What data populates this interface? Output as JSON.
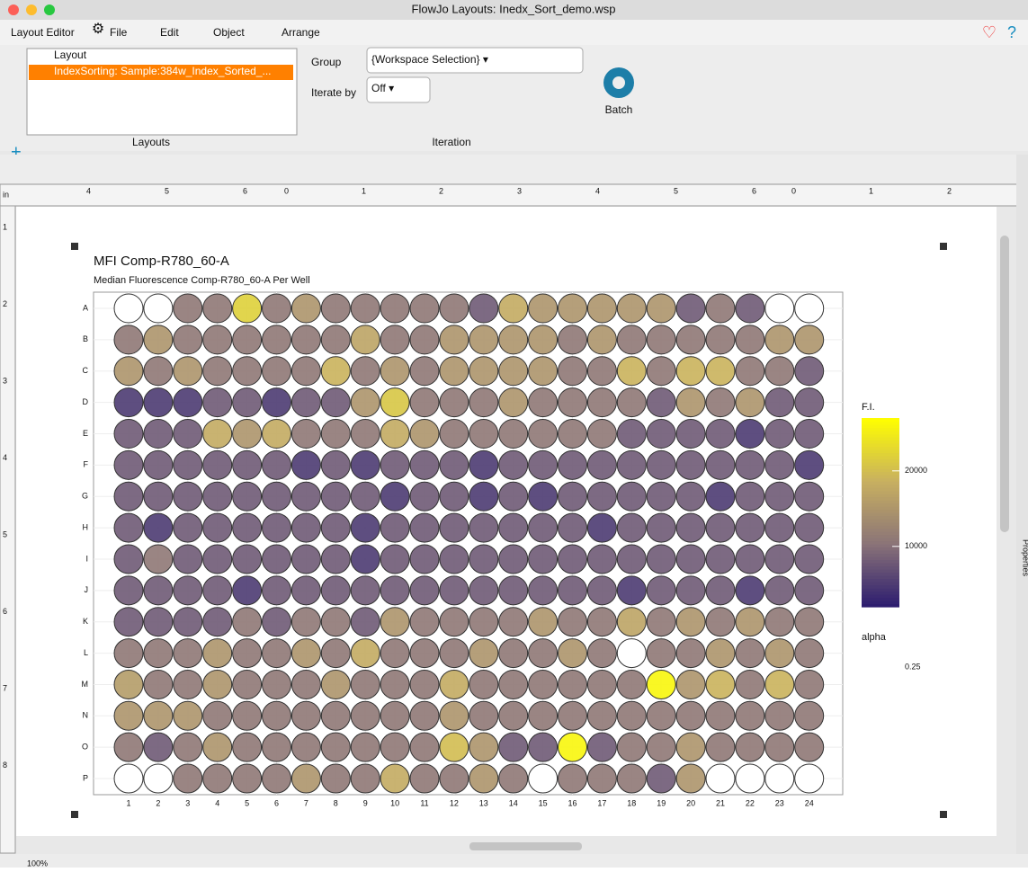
{
  "window": {
    "title": "FlowJo Layouts: Inedx_Sort_demo.wsp"
  },
  "menu": [
    "Layout Editor",
    "File",
    "Edit",
    "Object",
    "Arrange"
  ],
  "layouts": {
    "items": [
      "Layout",
      "IndexSorting: Sample:384w_Index_Sorted_..."
    ],
    "label": "Layouts"
  },
  "iteration": {
    "group_label": "Group",
    "group_value": "{Workspace Selection} ▾",
    "iterate_label": "Iterate by",
    "iterate_value": "Off ▾",
    "label": "Iteration",
    "batch": "Batch"
  },
  "ruler": {
    "unit": "in",
    "top": [
      "4",
      "5",
      "6",
      "0",
      "1",
      "2",
      "3",
      "4",
      "5",
      "6",
      "0",
      "1",
      "2"
    ],
    "left": [
      "1",
      "2",
      "3",
      "4",
      "5",
      "6",
      "7",
      "8"
    ]
  },
  "zoom": "100%",
  "side_panel": "Properties",
  "chart_data": {
    "type": "heatmap",
    "title": "MFI Comp-R780_60-A",
    "subtitle": "Median Fluorescence Comp-R780_60-A Per Well",
    "categories": [
      "1",
      "2",
      "3",
      "4",
      "5",
      "6",
      "7",
      "8",
      "9",
      "10",
      "11",
      "12",
      "13",
      "14",
      "15",
      "16",
      "17",
      "18",
      "19",
      "20",
      "21",
      "22",
      "23",
      "24"
    ],
    "rows": [
      "A",
      "B",
      "C",
      "D",
      "E",
      "F",
      "G",
      "H",
      "I",
      "J",
      "K",
      "L",
      "M",
      "N",
      "O",
      "P"
    ],
    "values": [
      [
        null,
        null,
        11000,
        11000,
        22000,
        11000,
        15000,
        11000,
        11000,
        11000,
        11000,
        11000,
        8000,
        18000,
        15000,
        15000,
        15000,
        15000,
        15000,
        8000,
        11000,
        8000,
        null,
        null
      ],
      [
        11000,
        15000,
        11000,
        11000,
        11000,
        11000,
        11000,
        11000,
        17000,
        11000,
        11000,
        15000,
        15000,
        15000,
        15000,
        11000,
        15000,
        11000,
        11000,
        11000,
        11000,
        11000,
        15000,
        15000
      ],
      [
        15000,
        11000,
        15000,
        11000,
        11000,
        11000,
        11000,
        19000,
        11000,
        15000,
        11000,
        15000,
        15000,
        15000,
        15000,
        11000,
        11000,
        19000,
        11000,
        19000,
        19000,
        11000,
        11000,
        8000
      ],
      [
        5000,
        5000,
        5000,
        8000,
        8000,
        5000,
        8000,
        8000,
        15000,
        21000,
        11000,
        11000,
        11000,
        15000,
        11000,
        11000,
        11000,
        11000,
        8000,
        15000,
        11000,
        15000,
        8000,
        8000
      ],
      [
        8000,
        8000,
        8000,
        18000,
        15000,
        18000,
        11000,
        11000,
        11000,
        18000,
        15000,
        11000,
        11000,
        11000,
        11000,
        11000,
        11000,
        8000,
        8000,
        8000,
        8000,
        5000,
        8000,
        8000
      ],
      [
        8000,
        8000,
        8000,
        8000,
        8000,
        8000,
        5000,
        8000,
        5000,
        8000,
        8000,
        8000,
        5000,
        8000,
        8000,
        8000,
        8000,
        8000,
        8000,
        8000,
        8000,
        8000,
        8000,
        5000
      ],
      [
        8000,
        8000,
        8000,
        8000,
        8000,
        8000,
        8000,
        8000,
        8000,
        5000,
        8000,
        8000,
        5000,
        8000,
        5000,
        8000,
        8000,
        8000,
        8000,
        8000,
        5000,
        8000,
        8000,
        8000
      ],
      [
        8000,
        5000,
        8000,
        8000,
        8000,
        8000,
        8000,
        8000,
        5000,
        8000,
        8000,
        8000,
        8000,
        8000,
        8000,
        8000,
        5000,
        8000,
        8000,
        8000,
        8000,
        8000,
        8000,
        8000
      ],
      [
        8000,
        11000,
        8000,
        8000,
        8000,
        8000,
        8000,
        8000,
        5000,
        8000,
        8000,
        8000,
        8000,
        8000,
        8000,
        8000,
        8000,
        8000,
        8000,
        8000,
        8000,
        8000,
        8000,
        8000
      ],
      [
        8000,
        8000,
        8000,
        8000,
        5000,
        8000,
        8000,
        8000,
        8000,
        8000,
        8000,
        8000,
        8000,
        8000,
        8000,
        8000,
        8000,
        5000,
        8000,
        8000,
        8000,
        5000,
        8000,
        8000
      ],
      [
        8000,
        8000,
        8000,
        8000,
        11000,
        8000,
        11000,
        11000,
        8000,
        15000,
        11000,
        11000,
        11000,
        11000,
        15000,
        11000,
        11000,
        17000,
        11000,
        15000,
        11000,
        15000,
        11000,
        11000
      ],
      [
        11000,
        11000,
        11000,
        15000,
        11000,
        11000,
        15000,
        11000,
        18000,
        11000,
        11000,
        11000,
        15000,
        11000,
        11000,
        15000,
        11000,
        null,
        11000,
        11000,
        15000,
        11000,
        15000,
        11000
      ],
      [
        16000,
        11000,
        11000,
        15000,
        11000,
        11000,
        11000,
        15000,
        11000,
        11000,
        11000,
        18000,
        11000,
        11000,
        11000,
        11000,
        11000,
        11000,
        26000,
        15000,
        19000,
        11000,
        19000,
        11000
      ],
      [
        15000,
        15000,
        15000,
        11000,
        11000,
        11000,
        11000,
        11000,
        11000,
        11000,
        11000,
        15000,
        11000,
        11000,
        11000,
        11000,
        11000,
        11000,
        11000,
        11000,
        11000,
        11000,
        11000,
        11000
      ],
      [
        11000,
        8000,
        11000,
        15000,
        11000,
        11000,
        11000,
        11000,
        11000,
        11000,
        11000,
        20000,
        15000,
        8000,
        8000,
        26000,
        8000,
        11000,
        11000,
        15000,
        11000,
        11000,
        11000,
        11000
      ],
      [
        null,
        null,
        11000,
        11000,
        11000,
        11000,
        15000,
        11000,
        11000,
        18000,
        11000,
        11000,
        15000,
        11000,
        null,
        11000,
        11000,
        11000,
        8000,
        15000,
        null,
        null,
        null,
        null
      ]
    ],
    "colorbar_title": "F.I.",
    "colorlim": [
      2000,
      27000
    ],
    "cticks": [
      10000,
      20000
    ],
    "colors": [
      "#2b1b6f",
      "#8a7378",
      "#c8b060",
      "#ffff00"
    ],
    "alpha_title": "alpha",
    "alpha_values": [
      0.25
    ]
  }
}
